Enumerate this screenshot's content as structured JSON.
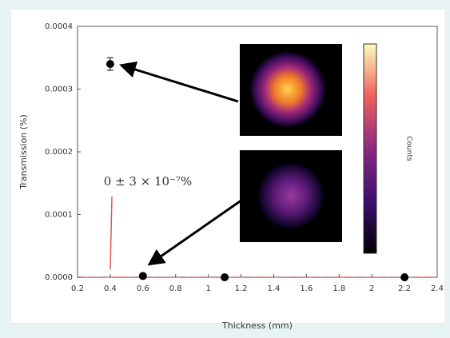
{
  "chart_data": {
    "type": "scatter",
    "xlabel": "Thickness (mm)",
    "ylabel": "Transmission (%)",
    "xlim": [
      0.2,
      2.4
    ],
    "xticks": [
      0.2,
      0.4,
      0.6,
      0.8,
      1.0,
      1.2,
      1.4,
      1.6,
      1.8,
      2.0,
      2.2,
      2.4
    ],
    "ylim": [
      0,
      0.0004
    ],
    "yticks": [
      {
        "value": 0,
        "label": "0.0000"
      },
      {
        "value": 0.0001,
        "label": "0.0001"
      },
      {
        "value": 0.0002,
        "label": "0.0002"
      },
      {
        "value": 0.0003,
        "label": "0.0003"
      },
      {
        "value": 0.0004,
        "label": "0.0004"
      }
    ],
    "series": [
      {
        "color": "#000000",
        "x": [
          0.4,
          0.6,
          1.1,
          2.2
        ],
        "values": [
          0.00034,
          2e-06,
          0,
          0
        ],
        "errors": [
          1e-05,
          0,
          0,
          0
        ]
      }
    ],
    "hline": {
      "value": 0,
      "color": "#e05a5a"
    },
    "annotation": "0 ± 3 × 10⁻⁷%",
    "colorbar_label": "Counts"
  }
}
